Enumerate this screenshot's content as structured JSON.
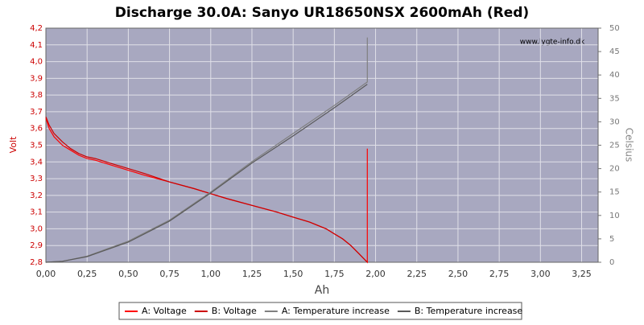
{
  "chart_data": {
    "type": "line",
    "title": "Discharge 30.0A: Sanyo UR18650NSX 2600mAh (Red)",
    "watermark": "www.lygte-info.dk",
    "xlabel": "Ah",
    "ylabel": "Volt",
    "y2label": "Celsius",
    "xlim": [
      0,
      3.35
    ],
    "xticks": [
      {
        "value": 0,
        "label": "0,00"
      },
      {
        "value": 0.25,
        "label": "0,25"
      },
      {
        "value": 0.5,
        "label": "0,50"
      },
      {
        "value": 0.75,
        "label": "0,75"
      },
      {
        "value": 1,
        "label": "1,00"
      },
      {
        "value": 1.25,
        "label": "1,25"
      },
      {
        "value": 1.5,
        "label": "1,50"
      },
      {
        "value": 1.75,
        "label": "1,75"
      },
      {
        "value": 2,
        "label": "2,00"
      },
      {
        "value": 2.25,
        "label": "2,25"
      },
      {
        "value": 2.5,
        "label": "2,50"
      },
      {
        "value": 2.75,
        "label": "2,75"
      },
      {
        "value": 3,
        "label": "3,00"
      },
      {
        "value": 3.25,
        "label": "3,25"
      }
    ],
    "ylim": [
      2.8,
      4.2
    ],
    "yticks": [
      {
        "value": 2.8,
        "label": "2,8"
      },
      {
        "value": 2.9,
        "label": "2,9"
      },
      {
        "value": 3.0,
        "label": "3,0"
      },
      {
        "value": 3.1,
        "label": "3,1"
      },
      {
        "value": 3.2,
        "label": "3,2"
      },
      {
        "value": 3.3,
        "label": "3,3"
      },
      {
        "value": 3.4,
        "label": "3,4"
      },
      {
        "value": 3.5,
        "label": "3,5"
      },
      {
        "value": 3.6,
        "label": "3,6"
      },
      {
        "value": 3.7,
        "label": "3,7"
      },
      {
        "value": 3.8,
        "label": "3,8"
      },
      {
        "value": 3.9,
        "label": "3,9"
      },
      {
        "value": 4.0,
        "label": "4,0"
      },
      {
        "value": 4.1,
        "label": "4,1"
      },
      {
        "value": 4.2,
        "label": "4,2"
      }
    ],
    "y2lim": [
      0,
      50
    ],
    "y2ticks": [
      0,
      5,
      10,
      15,
      20,
      25,
      30,
      35,
      40,
      45,
      50
    ],
    "grid": true,
    "series": [
      {
        "name": "A: Voltage",
        "color": "#ff0000",
        "x": [
          0,
          0.02,
          0.05,
          0.1,
          0.15,
          0.2,
          0.25,
          0.3,
          0.4,
          0.5,
          0.6,
          0.75,
          0.9,
          1.0,
          1.1,
          1.25,
          1.4,
          1.5,
          1.6,
          1.7,
          1.75,
          1.8,
          1.85,
          1.9,
          1.95,
          1.95
        ],
        "values": [
          3.66,
          3.6,
          3.55,
          3.5,
          3.47,
          3.44,
          3.42,
          3.41,
          3.38,
          3.35,
          3.32,
          3.28,
          3.24,
          3.21,
          3.18,
          3.14,
          3.1,
          3.07,
          3.04,
          3.0,
          2.97,
          2.94,
          2.9,
          2.85,
          2.8,
          3.48
        ]
      },
      {
        "name": "B: Voltage",
        "color": "#cc0000",
        "x": [
          0,
          0.02,
          0.05,
          0.1,
          0.15,
          0.2,
          0.25,
          0.3,
          0.4,
          0.5,
          0.6,
          0.75,
          0.9,
          1.0,
          1.1,
          1.25,
          1.4,
          1.5,
          1.6,
          1.7,
          1.75,
          1.8,
          1.85,
          1.9,
          1.95
        ],
        "values": [
          3.67,
          3.62,
          3.57,
          3.52,
          3.48,
          3.45,
          3.43,
          3.42,
          3.39,
          3.36,
          3.33,
          3.28,
          3.24,
          3.21,
          3.18,
          3.14,
          3.1,
          3.07,
          3.04,
          3.0,
          2.97,
          2.94,
          2.9,
          2.85,
          2.8
        ]
      },
      {
        "name": "A: Temperature increase",
        "color": "#808080",
        "axis": "y2",
        "x": [
          0,
          0.1,
          0.25,
          0.5,
          0.75,
          1.0,
          1.25,
          1.5,
          1.75,
          1.95,
          1.95
        ],
        "values": [
          0,
          0.2,
          1.3,
          4.5,
          9,
          15,
          21.5,
          27.5,
          33.5,
          38.5,
          48
        ]
      },
      {
        "name": "B: Temperature increase",
        "color": "#5a5a5a",
        "axis": "y2",
        "x": [
          0,
          0.1,
          0.25,
          0.5,
          0.75,
          1.0,
          1.25,
          1.5,
          1.75,
          1.95
        ],
        "values": [
          0,
          0.2,
          1.2,
          4.3,
          8.8,
          14.8,
          21.2,
          27.0,
          33.0,
          38.0
        ]
      }
    ]
  }
}
